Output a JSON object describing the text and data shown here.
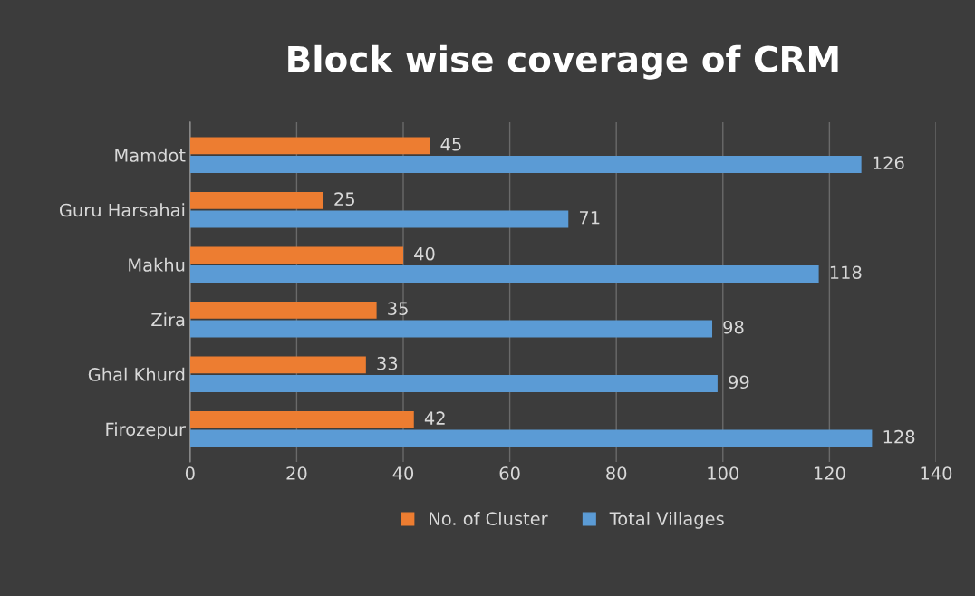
{
  "chart_data": {
    "type": "bar",
    "orientation": "horizontal",
    "title": "Block wise coverage of CRM",
    "categories": [
      "Mamdot",
      "Guru Harsahai",
      "Makhu",
      "Zira",
      "Ghal Khurd",
      "Firozepur"
    ],
    "series": [
      {
        "name": "No. of Cluster",
        "color": "#ed7d31",
        "values": [
          45,
          25,
          40,
          35,
          33,
          42
        ]
      },
      {
        "name": "Total Villages",
        "color": "#5b9bd5",
        "values": [
          126,
          71,
          118,
          98,
          99,
          128
        ]
      }
    ],
    "xlim": [
      0,
      140
    ],
    "xticks": [
      0,
      20,
      40,
      60,
      80,
      100,
      120,
      140
    ],
    "grid": "x",
    "legend": "bottom",
    "data_labels": true
  }
}
